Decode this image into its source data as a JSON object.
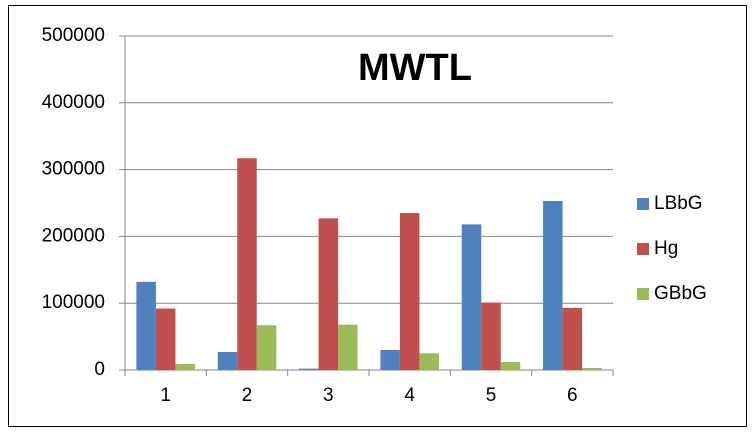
{
  "chart_data": {
    "type": "bar",
    "title": "MWTL",
    "categories": [
      "1",
      "2",
      "3",
      "4",
      "5",
      "6"
    ],
    "series": [
      {
        "name": "LBbG",
        "color": "#4f81bd",
        "values": [
          132000,
          27000,
          2000,
          30000,
          218000,
          253000
        ]
      },
      {
        "name": "Hg",
        "color": "#c0504d",
        "values": [
          92000,
          317000,
          227000,
          235000,
          101000,
          93000
        ]
      },
      {
        "name": "GBbG",
        "color": "#9bbb59",
        "values": [
          9000,
          67000,
          68000,
          25000,
          12000,
          3000
        ]
      }
    ],
    "ylim": [
      0,
      500000
    ],
    "yticks": [
      0,
      100000,
      200000,
      300000,
      400000,
      500000
    ],
    "grid": true,
    "legend": "right"
  }
}
